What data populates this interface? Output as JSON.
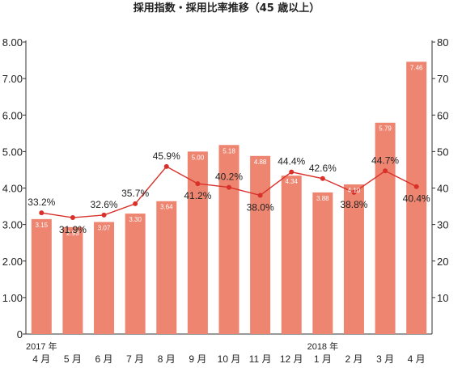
{
  "chart_data": {
    "type": "bar",
    "title": "採用指数・採用比率推移（45 歳以上）",
    "categories": [
      "4 月",
      "5 月",
      "6 月",
      "7 月",
      "8 月",
      "9 月",
      "10 月",
      "11 月",
      "12 月",
      "1 月",
      "2 月",
      "3 月",
      "4 月"
    ],
    "year_labels": [
      {
        "index": 0,
        "text": "2017 年"
      },
      {
        "index": 9,
        "text": "2018 年"
      }
    ],
    "series": [
      {
        "type": "bar",
        "axis": "left",
        "values": [
          3.15,
          2.93,
          3.07,
          3.3,
          3.64,
          5.0,
          5.18,
          4.88,
          4.34,
          3.88,
          4.1,
          5.79,
          7.46
        ],
        "labels": [
          "3.15",
          "2.93",
          "3.07",
          "3.30",
          "3.64",
          "5.00",
          "5.18",
          "4.88",
          "4.34",
          "3.88",
          "4.10",
          "5.79",
          "7.46"
        ],
        "color": "#ee8570"
      },
      {
        "type": "line",
        "axis": "right",
        "values": [
          33.2,
          31.9,
          32.6,
          35.7,
          45.9,
          41.2,
          40.2,
          38.0,
          44.4,
          42.6,
          38.8,
          44.7,
          40.4
        ],
        "labels": [
          "33.2%",
          "31.9%",
          "32.6%",
          "35.7%",
          "45.9%",
          "41.2%",
          "40.2%",
          "38.0%",
          "44.4%",
          "42.6%",
          "38.8%",
          "44.7%",
          "40.4%"
        ],
        "color": "#d9302a"
      }
    ],
    "y_left": {
      "min": 0,
      "max": 8,
      "ticks": [
        "0",
        "1.00",
        "2.00",
        "3.00",
        "4.00",
        "5.00",
        "6.00",
        "7.00",
        "8.00"
      ]
    },
    "y_right": {
      "min": 0,
      "max": 80,
      "ticks": [
        "10",
        "20",
        "30",
        "40",
        "50",
        "60",
        "70",
        "80"
      ]
    },
    "grid": false,
    "legend": "none"
  }
}
